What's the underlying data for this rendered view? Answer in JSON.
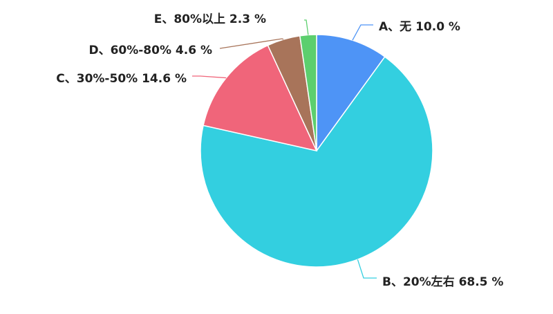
{
  "chart_data": {
    "type": "pie",
    "title": "",
    "slices": [
      {
        "label": "A、无 10.0 %",
        "value": 10.0,
        "color": "#4e94f6"
      },
      {
        "label": "B、20%左右 68.5 %",
        "value": 68.5,
        "color": "#33cfe0"
      },
      {
        "label": "C、30%-50% 14.6 %",
        "value": 14.6,
        "color": "#f0657a"
      },
      {
        "label": "D、60%-80% 4.6 %",
        "value": 4.6,
        "color": "#a8745a"
      },
      {
        "label": "E、80%以上 2.3 %",
        "value": 2.3,
        "color": "#5ccf6e"
      }
    ],
    "start_angle_deg": 0,
    "direction": "clockwise",
    "legend": "none"
  }
}
